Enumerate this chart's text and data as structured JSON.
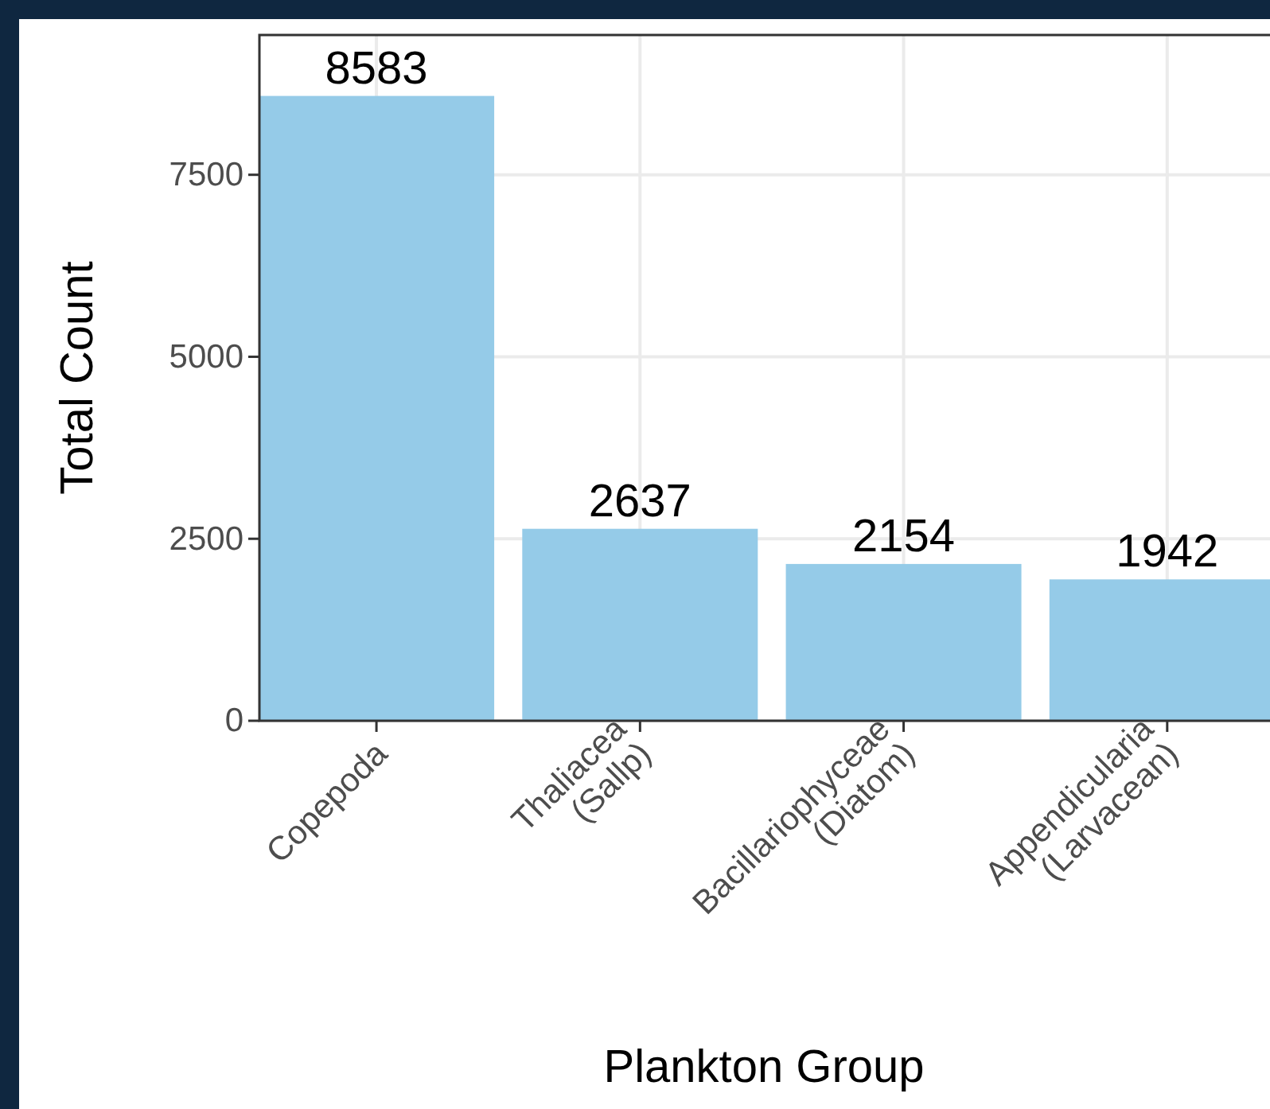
{
  "chart_data": {
    "type": "bar",
    "xlabel": "Plankton Group",
    "ylabel": "Total Count",
    "categories": [
      "Copepoda",
      "Thaliacea\n(Sallp)",
      "Bacillariophyceae\n(Diatom)",
      "Appendicularia\n(Larvacean)"
    ],
    "values": [
      8583,
      2637,
      2154,
      1942
    ],
    "color": "#95cbe8",
    "ylim": [
      0,
      9420
    ],
    "yticks": [
      0,
      2500,
      5000,
      7500
    ],
    "grid": true,
    "data_labels": true
  }
}
